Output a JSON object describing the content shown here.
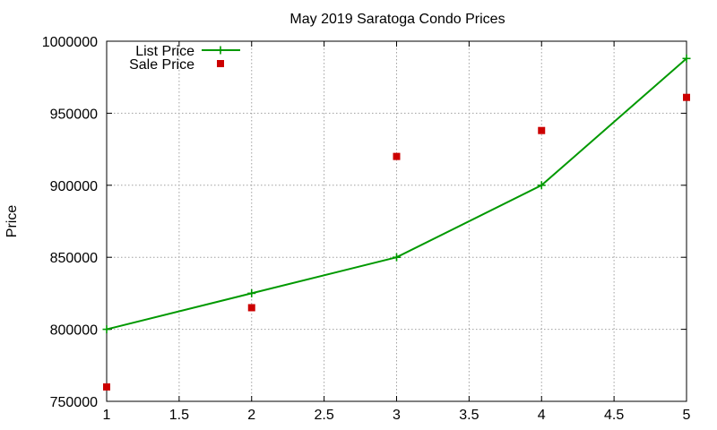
{
  "chart_data": {
    "type": "line",
    "title": "May 2019 Saratoga Condo Prices",
    "xlabel": "",
    "ylabel": "Price",
    "xlim": [
      1,
      5
    ],
    "ylim": [
      750000,
      1000000
    ],
    "x_ticks": [
      1,
      1.5,
      2,
      2.5,
      3,
      3.5,
      4,
      4.5,
      5
    ],
    "y_ticks": [
      750000,
      800000,
      850000,
      900000,
      950000,
      1000000
    ],
    "grid": true,
    "legend_position": "top-left",
    "series": [
      {
        "name": "List Price",
        "style": "lines+points",
        "marker": "plus",
        "color": "#009900",
        "x": [
          1,
          2,
          3,
          4,
          5
        ],
        "y": [
          800000,
          825000,
          850000,
          900000,
          988000
        ]
      },
      {
        "name": "Sale Price",
        "style": "points",
        "marker": "square",
        "color": "#cc0000",
        "x": [
          1,
          2,
          3,
          4,
          5
        ],
        "y": [
          760000,
          815000,
          920000,
          938000,
          961000
        ]
      }
    ]
  }
}
